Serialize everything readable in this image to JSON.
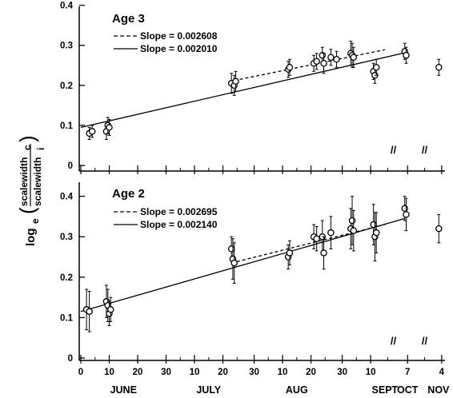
{
  "chart_data": [
    {
      "type": "scatter",
      "title": "Age 3",
      "ylim": [
        0,
        0.45
      ],
      "yticks": [
        "0.4",
        "0.3",
        "0.2",
        "0.1",
        "0"
      ],
      "series": [
        {
          "name": "Slope = 0.002608",
          "style": "dashed",
          "line": [
            [
              54,
              0.212
            ],
            [
              107,
              0.289
            ]
          ]
        },
        {
          "name": "Slope = 0.002010",
          "style": "solid",
          "line": [
            [
              0,
              0.095
            ],
            [
              115,
              0.283
            ]
          ]
        }
      ],
      "points": [
        {
          "x": 3,
          "y": 0.08,
          "err": 0.015
        },
        {
          "x": 4,
          "y": 0.085,
          "err": 0.015
        },
        {
          "x": 9,
          "y": 0.085,
          "err": 0.02
        },
        {
          "x": 9.5,
          "y": 0.1,
          "err": 0.02
        },
        {
          "x": 10,
          "y": 0.095,
          "err": 0.02
        },
        {
          "x": 53,
          "y": 0.205,
          "err": 0.025
        },
        {
          "x": 54,
          "y": 0.2,
          "err": 0.025
        },
        {
          "x": 54.5,
          "y": 0.21,
          "err": 0.025
        },
        {
          "x": 73,
          "y": 0.24,
          "err": 0.02
        },
        {
          "x": 73.5,
          "y": 0.245,
          "err": 0.02
        },
        {
          "x": 82,
          "y": 0.255,
          "err": 0.02
        },
        {
          "x": 83,
          "y": 0.26,
          "err": 0.02
        },
        {
          "x": 85,
          "y": 0.275,
          "err": 0.02
        },
        {
          "x": 85.5,
          "y": 0.255,
          "err": 0.025
        },
        {
          "x": 88,
          "y": 0.27,
          "err": 0.02
        },
        {
          "x": 90,
          "y": 0.265,
          "err": 0.02
        },
        {
          "x": 95,
          "y": 0.28,
          "err": 0.03
        },
        {
          "x": 95.5,
          "y": 0.275,
          "err": 0.03
        },
        {
          "x": 96,
          "y": 0.27,
          "err": 0.025
        },
        {
          "x": 103,
          "y": 0.235,
          "err": 0.02
        },
        {
          "x": 103.5,
          "y": 0.225,
          "err": 0.02
        },
        {
          "x": 104,
          "y": 0.245,
          "err": 0.02
        },
        {
          "x": 114,
          "y": 0.285,
          "err": 0.02
        },
        {
          "x": 114.5,
          "y": 0.275,
          "err": 0.02
        },
        {
          "x": 126,
          "y": 0.245,
          "err": 0.02
        }
      ]
    },
    {
      "type": "scatter",
      "title": "Age 2",
      "ylim": [
        0,
        0.45
      ],
      "yticks": [
        "0.4",
        "0.3",
        "0.2",
        "0.1",
        "0"
      ],
      "series": [
        {
          "name": "Slope = 0.002695",
          "style": "dashed",
          "line": [
            [
              53,
              0.235
            ],
            [
              107,
              0.33
            ]
          ]
        },
        {
          "name": "Slope = 0.002140",
          "style": "solid",
          "line": [
            [
              0,
              0.115
            ],
            [
              114,
              0.345
            ]
          ]
        }
      ],
      "points": [
        {
          "x": 2,
          "y": 0.12,
          "err": 0.05
        },
        {
          "x": 3,
          "y": 0.115,
          "err": 0.05
        },
        {
          "x": 9,
          "y": 0.14,
          "err": 0.04
        },
        {
          "x": 9.5,
          "y": 0.13,
          "err": 0.04
        },
        {
          "x": 10,
          "y": 0.11,
          "err": 0.03
        },
        {
          "x": 10.5,
          "y": 0.12,
          "err": 0.03
        },
        {
          "x": 53,
          "y": 0.27,
          "err": 0.03
        },
        {
          "x": 53.5,
          "y": 0.245,
          "err": 0.05
        },
        {
          "x": 54,
          "y": 0.235,
          "err": 0.05
        },
        {
          "x": 73,
          "y": 0.25,
          "err": 0.03
        },
        {
          "x": 73.5,
          "y": 0.26,
          "err": 0.03
        },
        {
          "x": 82,
          "y": 0.3,
          "err": 0.03
        },
        {
          "x": 83,
          "y": 0.295,
          "err": 0.03
        },
        {
          "x": 85,
          "y": 0.3,
          "err": 0.04
        },
        {
          "x": 85.5,
          "y": 0.26,
          "err": 0.04
        },
        {
          "x": 88,
          "y": 0.31,
          "err": 0.04
        },
        {
          "x": 95,
          "y": 0.32,
          "err": 0.05
        },
        {
          "x": 95.5,
          "y": 0.34,
          "err": 0.06
        },
        {
          "x": 96,
          "y": 0.315,
          "err": 0.05
        },
        {
          "x": 103,
          "y": 0.33,
          "err": 0.05
        },
        {
          "x": 103.5,
          "y": 0.3,
          "err": 0.06
        },
        {
          "x": 104,
          "y": 0.31,
          "err": 0.05
        },
        {
          "x": 114,
          "y": 0.37,
          "err": 0.03
        },
        {
          "x": 114.5,
          "y": 0.355,
          "err": 0.04
        },
        {
          "x": 126,
          "y": 0.32,
          "err": 0.035
        }
      ]
    }
  ],
  "ylabel": {
    "prefix": "log",
    "sub": "e",
    "numerator": "scalewidth",
    "numerator_sub": "c",
    "denominator": "scalewidth",
    "denominator_sub": "i"
  },
  "xticks": [
    "0",
    "10",
    "20",
    "30",
    "10",
    "20",
    "30",
    "10",
    "20",
    "30",
    "10",
    "7",
    "4"
  ],
  "months": [
    "JUNE",
    "JULY",
    "AUG",
    "SEPT",
    "OCT",
    "NOV"
  ],
  "break_mark": "//"
}
